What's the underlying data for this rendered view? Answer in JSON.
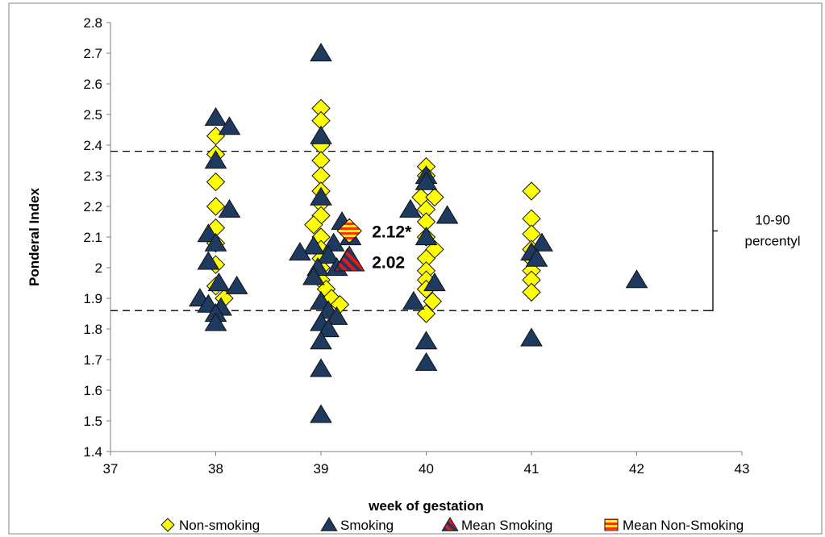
{
  "chart_data": {
    "type": "scatter",
    "xlabel": "week of gestation",
    "ylabel": "Ponderal Index",
    "xlim": [
      37,
      43
    ],
    "ylim": [
      1.4,
      2.8
    ],
    "x_ticks": [
      "37",
      "38",
      "39",
      "40",
      "41",
      "42",
      "43"
    ],
    "y_ticks": [
      "1.4",
      "1.5",
      "1.6",
      "1.7",
      "1.8",
      "1.9",
      "2",
      "2.1",
      "2.2",
      "2.3",
      "2.4",
      "2.5",
      "2.6",
      "2.7",
      "2.8"
    ],
    "grid": false,
    "legend_position": "bottom",
    "reference_lines": [
      {
        "y": 2.38,
        "style": "dashed"
      },
      {
        "y": 1.86,
        "style": "dashed"
      }
    ],
    "bracket_label_line1": "10-90",
    "bracket_label_line2": "percentyl",
    "series": [
      {
        "name": "Non-smoking",
        "marker": "diamond",
        "color": "#FFFF00",
        "points": [
          [
            38,
            2.43
          ],
          [
            38,
            2.37
          ],
          [
            38,
            2.28
          ],
          [
            38,
            2.2
          ],
          [
            38,
            2.13
          ],
          [
            38,
            2.08
          ],
          [
            38,
            2.01
          ],
          [
            38,
            1.94
          ],
          [
            38.08,
            1.9
          ],
          [
            39,
            2.52
          ],
          [
            39,
            2.48
          ],
          [
            39,
            2.4
          ],
          [
            39,
            2.35
          ],
          [
            39,
            2.3
          ],
          [
            39,
            2.25
          ],
          [
            39,
            2.21
          ],
          [
            39,
            2.17
          ],
          [
            38.93,
            2.14
          ],
          [
            39,
            2.1
          ],
          [
            39,
            2.06
          ],
          [
            39,
            2.03
          ],
          [
            39,
            2.0
          ],
          [
            39,
            1.96
          ],
          [
            39.05,
            1.93
          ],
          [
            39.1,
            1.9
          ],
          [
            39.18,
            1.88
          ],
          [
            40,
            2.33
          ],
          [
            40,
            2.3
          ],
          [
            39.95,
            2.23
          ],
          [
            40.08,
            2.23
          ],
          [
            40,
            2.19
          ],
          [
            40,
            2.15
          ],
          [
            40,
            2.1
          ],
          [
            40.08,
            2.06
          ],
          [
            40,
            2.03
          ],
          [
            40,
            1.99
          ],
          [
            40,
            1.96
          ],
          [
            40,
            1.93
          ],
          [
            40.06,
            1.89
          ],
          [
            40,
            1.85
          ],
          [
            41,
            2.25
          ],
          [
            41,
            2.16
          ],
          [
            41,
            2.11
          ],
          [
            41,
            2.06
          ],
          [
            41,
            2.03
          ],
          [
            41,
            1.99
          ],
          [
            41,
            1.96
          ],
          [
            41,
            1.92
          ]
        ]
      },
      {
        "name": "Smoking",
        "marker": "triangle",
        "color": "#1F3A5F",
        "points": [
          [
            38,
            2.49
          ],
          [
            38.13,
            2.46
          ],
          [
            38,
            2.35
          ],
          [
            38.13,
            2.19
          ],
          [
            37.93,
            2.11
          ],
          [
            38,
            2.08
          ],
          [
            37.93,
            2.02
          ],
          [
            38.03,
            1.95
          ],
          [
            38.2,
            1.94
          ],
          [
            37.85,
            1.9
          ],
          [
            37.93,
            1.88
          ],
          [
            38.05,
            1.87
          ],
          [
            38,
            1.85
          ],
          [
            38,
            1.82
          ],
          [
            39,
            2.7
          ],
          [
            39,
            2.43
          ],
          [
            39,
            2.23
          ],
          [
            39.2,
            2.15
          ],
          [
            39.28,
            2.1
          ],
          [
            39.12,
            2.08
          ],
          [
            38.93,
            2.07
          ],
          [
            38.8,
            2.05
          ],
          [
            39.07,
            2.04
          ],
          [
            39.25,
            2.03
          ],
          [
            38.97,
            2.0
          ],
          [
            39.15,
            2.0
          ],
          [
            38.93,
            1.97
          ],
          [
            39,
            1.89
          ],
          [
            39.07,
            1.86
          ],
          [
            39.15,
            1.84
          ],
          [
            39,
            1.82
          ],
          [
            39.07,
            1.8
          ],
          [
            39,
            1.76
          ],
          [
            39,
            1.67
          ],
          [
            39,
            1.52
          ],
          [
            40,
            2.3
          ],
          [
            40,
            2.28
          ],
          [
            39.85,
            2.19
          ],
          [
            40.2,
            2.17
          ],
          [
            40,
            2.1
          ],
          [
            40.08,
            1.95
          ],
          [
            39.88,
            1.89
          ],
          [
            40,
            1.76
          ],
          [
            40,
            1.69
          ],
          [
            41.1,
            2.08
          ],
          [
            41,
            2.05
          ],
          [
            41.05,
            2.03
          ],
          [
            41,
            1.77
          ],
          [
            42,
            1.96
          ]
        ]
      },
      {
        "name": "Mean Smoking",
        "marker": "triangle",
        "color": "#E31A1C",
        "points": [
          [
            39.27,
            2.02
          ]
        ]
      },
      {
        "name": "Mean Non-Smoking",
        "marker": "diamond",
        "color": "#FF3300",
        "points": [
          [
            39.27,
            2.12
          ]
        ]
      }
    ],
    "annotations": [
      {
        "text": "2.12*",
        "x": 39.27,
        "y": 2.12
      },
      {
        "text": "2.02",
        "x": 39.27,
        "y": 2.02
      }
    ]
  }
}
